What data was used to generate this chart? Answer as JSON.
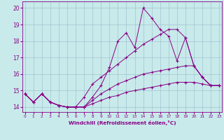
{
  "xlabel": "Windchill (Refroidissement éolien,°C)",
  "bg_color": "#c8eaea",
  "line_color": "#880088",
  "grid_color": "#99bbcc",
  "x": [
    0,
    1,
    2,
    3,
    4,
    5,
    6,
    7,
    8,
    9,
    10,
    11,
    12,
    13,
    14,
    15,
    16,
    17,
    18,
    19,
    20,
    21,
    22,
    23
  ],
  "line1": [
    14.8,
    14.3,
    14.8,
    14.3,
    14.1,
    14.0,
    14.0,
    14.0,
    14.6,
    15.3,
    16.4,
    18.0,
    18.5,
    17.6,
    20.0,
    19.4,
    18.7,
    18.3,
    16.8,
    18.2,
    16.5,
    15.8,
    15.3,
    15.3
  ],
  "line2": [
    14.8,
    14.3,
    14.8,
    14.3,
    14.1,
    14.0,
    14.0,
    14.6,
    15.4,
    15.8,
    16.2,
    16.6,
    17.0,
    17.4,
    17.8,
    18.1,
    18.4,
    18.7,
    18.7,
    18.2,
    16.5,
    15.8,
    15.3,
    15.3
  ],
  "line3": [
    14.8,
    14.3,
    14.8,
    14.3,
    14.1,
    14.0,
    14.0,
    14.0,
    14.4,
    14.8,
    15.1,
    15.4,
    15.6,
    15.8,
    16.0,
    16.1,
    16.2,
    16.3,
    16.4,
    16.5,
    16.5,
    15.8,
    15.3,
    15.3
  ],
  "line4": [
    14.8,
    14.3,
    14.8,
    14.3,
    14.1,
    14.0,
    14.0,
    14.0,
    14.2,
    14.4,
    14.6,
    14.7,
    14.9,
    15.0,
    15.1,
    15.2,
    15.3,
    15.4,
    15.5,
    15.5,
    15.5,
    15.4,
    15.3,
    15.3
  ],
  "ylim": [
    13.7,
    20.4
  ],
  "yticks": [
    14,
    15,
    16,
    17,
    18,
    19,
    20
  ],
  "xlim": [
    -0.3,
    23.3
  ]
}
